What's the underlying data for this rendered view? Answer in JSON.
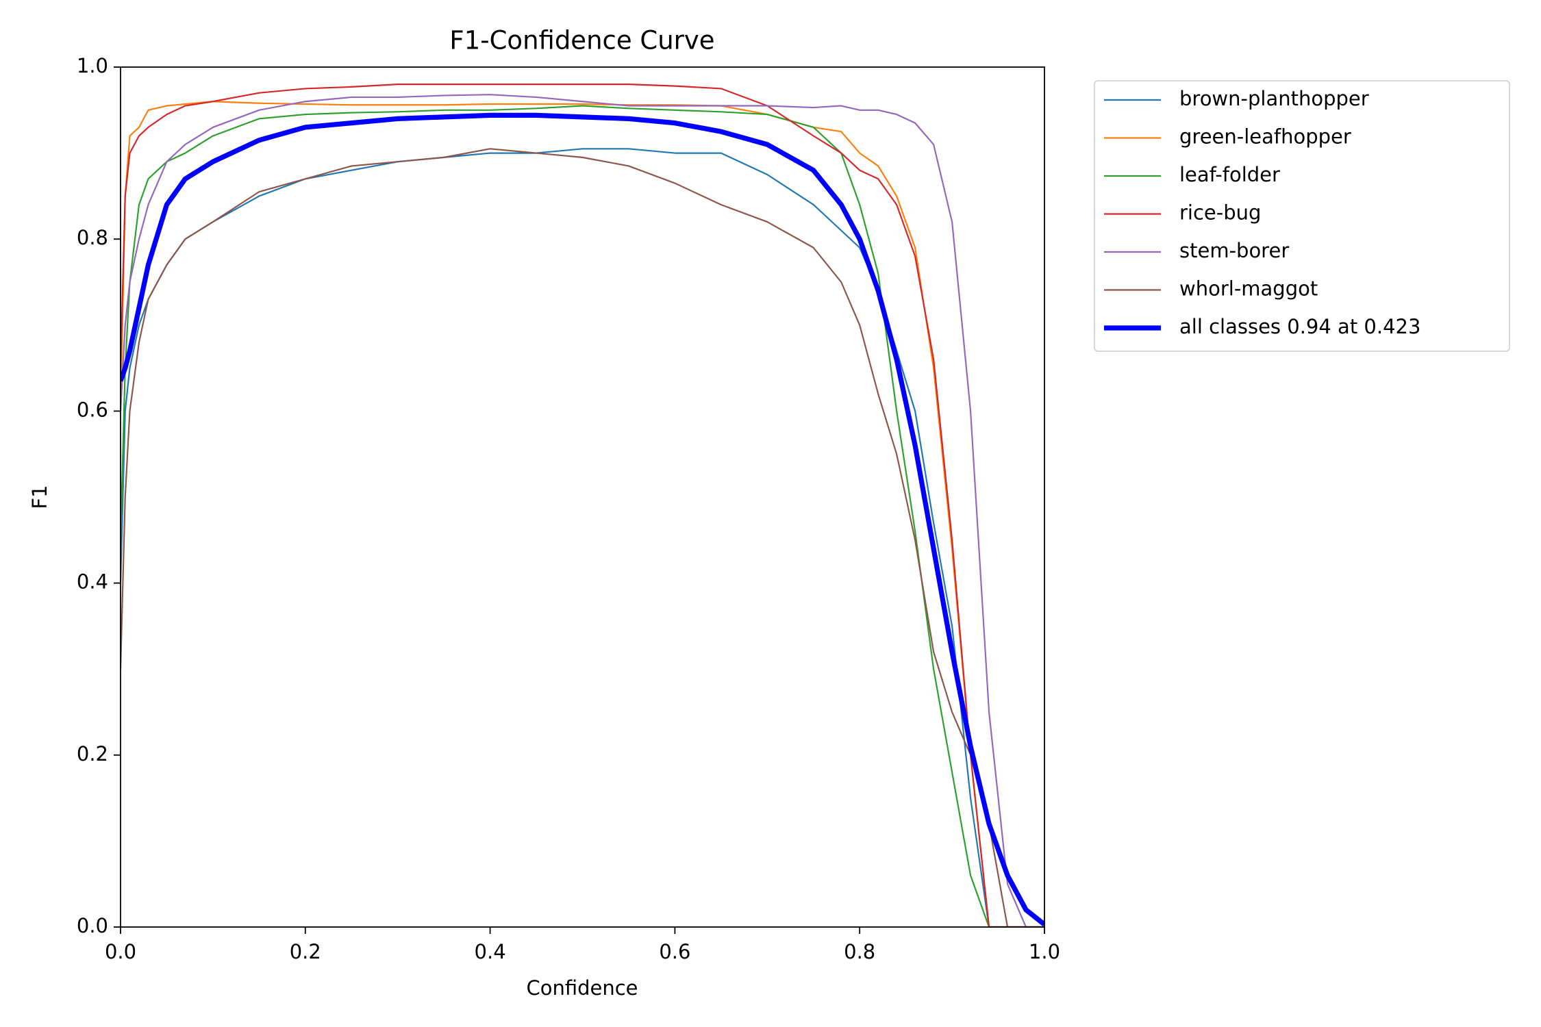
{
  "chart_data": {
    "type": "line",
    "title": "F1-Confidence Curve",
    "x_label": "Confidence",
    "y_label": "F1",
    "x": [
      0,
      0.005,
      0.01,
      0.02,
      0.03,
      0.05,
      0.07,
      0.1,
      0.15,
      0.2,
      0.25,
      0.3,
      0.35,
      0.4,
      0.45,
      0.5,
      0.55,
      0.6,
      0.65,
      0.7,
      0.75,
      0.78,
      0.8,
      0.82,
      0.84,
      0.86,
      0.88,
      0.9,
      0.92,
      0.94,
      0.96,
      0.98,
      1.0
    ],
    "series": [
      {
        "name": "brown-planthopper",
        "color": "#1f77b4",
        "width": 1.5,
        "values": [
          0.4,
          0.6,
          0.65,
          0.7,
          0.73,
          0.77,
          0.8,
          0.82,
          0.85,
          0.87,
          0.88,
          0.89,
          0.895,
          0.9,
          0.9,
          0.905,
          0.905,
          0.9,
          0.9,
          0.875,
          0.84,
          0.81,
          0.79,
          0.74,
          0.67,
          0.6,
          0.47,
          0.35,
          0.15,
          0,
          0,
          0,
          0
        ]
      },
      {
        "name": "green-leafhopper",
        "color": "#ff7f0e",
        "width": 1.5,
        "values": [
          0.6,
          0.85,
          0.92,
          0.93,
          0.95,
          0.955,
          0.957,
          0.96,
          0.958,
          0.957,
          0.956,
          0.956,
          0.956,
          0.957,
          0.957,
          0.957,
          0.956,
          0.956,
          0.955,
          0.945,
          0.93,
          0.925,
          0.9,
          0.885,
          0.85,
          0.79,
          0.65,
          0.44,
          0.2,
          0,
          0,
          0,
          0
        ]
      },
      {
        "name": "leaf-folder",
        "color": "#2ca02c",
        "width": 1.5,
        "values": [
          0.45,
          0.65,
          0.75,
          0.84,
          0.87,
          0.89,
          0.9,
          0.92,
          0.94,
          0.945,
          0.947,
          0.948,
          0.95,
          0.95,
          0.952,
          0.955,
          0.952,
          0.95,
          0.948,
          0.945,
          0.93,
          0.9,
          0.84,
          0.76,
          0.6,
          0.46,
          0.3,
          0.18,
          0.06,
          0,
          0,
          0,
          0
        ]
      },
      {
        "name": "rice-bug",
        "color": "#d62728",
        "width": 1.5,
        "values": [
          0.65,
          0.85,
          0.9,
          0.92,
          0.93,
          0.945,
          0.955,
          0.96,
          0.97,
          0.975,
          0.977,
          0.98,
          0.98,
          0.98,
          0.98,
          0.98,
          0.98,
          0.978,
          0.975,
          0.955,
          0.92,
          0.9,
          0.88,
          0.87,
          0.84,
          0.78,
          0.66,
          0.45,
          0.2,
          0,
          0,
          0,
          0
        ]
      },
      {
        "name": "stem-borer",
        "color": "#9467bd",
        "width": 1.5,
        "values": [
          0.6,
          0.7,
          0.75,
          0.8,
          0.84,
          0.89,
          0.91,
          0.93,
          0.95,
          0.96,
          0.965,
          0.965,
          0.967,
          0.968,
          0.965,
          0.96,
          0.955,
          0.955,
          0.955,
          0.955,
          0.953,
          0.955,
          0.95,
          0.95,
          0.945,
          0.935,
          0.91,
          0.82,
          0.6,
          0.25,
          0.05,
          0,
          0
        ]
      },
      {
        "name": "whorl-maggot",
        "color": "#8c564b",
        "width": 1.5,
        "values": [
          0.3,
          0.5,
          0.6,
          0.68,
          0.73,
          0.77,
          0.8,
          0.82,
          0.855,
          0.87,
          0.885,
          0.89,
          0.895,
          0.905,
          0.9,
          0.895,
          0.885,
          0.865,
          0.84,
          0.82,
          0.79,
          0.75,
          0.7,
          0.62,
          0.55,
          0.45,
          0.32,
          0.25,
          0.2,
          0.12,
          0,
          0,
          0
        ]
      },
      {
        "name": "all classes 0.94 at 0.423",
        "color": "#0000ff",
        "width": 5,
        "values": [
          0.635,
          0.65,
          0.67,
          0.72,
          0.77,
          0.84,
          0.87,
          0.89,
          0.915,
          0.93,
          0.935,
          0.94,
          0.942,
          0.944,
          0.944,
          0.942,
          0.94,
          0.935,
          0.925,
          0.91,
          0.88,
          0.84,
          0.8,
          0.74,
          0.66,
          0.56,
          0.44,
          0.32,
          0.21,
          0.12,
          0.06,
          0.02,
          0.003
        ]
      }
    ],
    "xlim": [
      0,
      1
    ],
    "ylim": [
      0,
      1
    ],
    "xticks": [
      {
        "value": 0,
        "label": "0.0"
      },
      0.2,
      0.4,
      0.6,
      0.8,
      {
        "value": 1,
        "label": "1.0"
      }
    ],
    "yticks": [
      {
        "value": 0,
        "label": "0.0"
      },
      0.2,
      0.4,
      0.6,
      0.8,
      {
        "value": 1,
        "label": "1.0"
      }
    ],
    "legend": "outside-upper-right"
  }
}
